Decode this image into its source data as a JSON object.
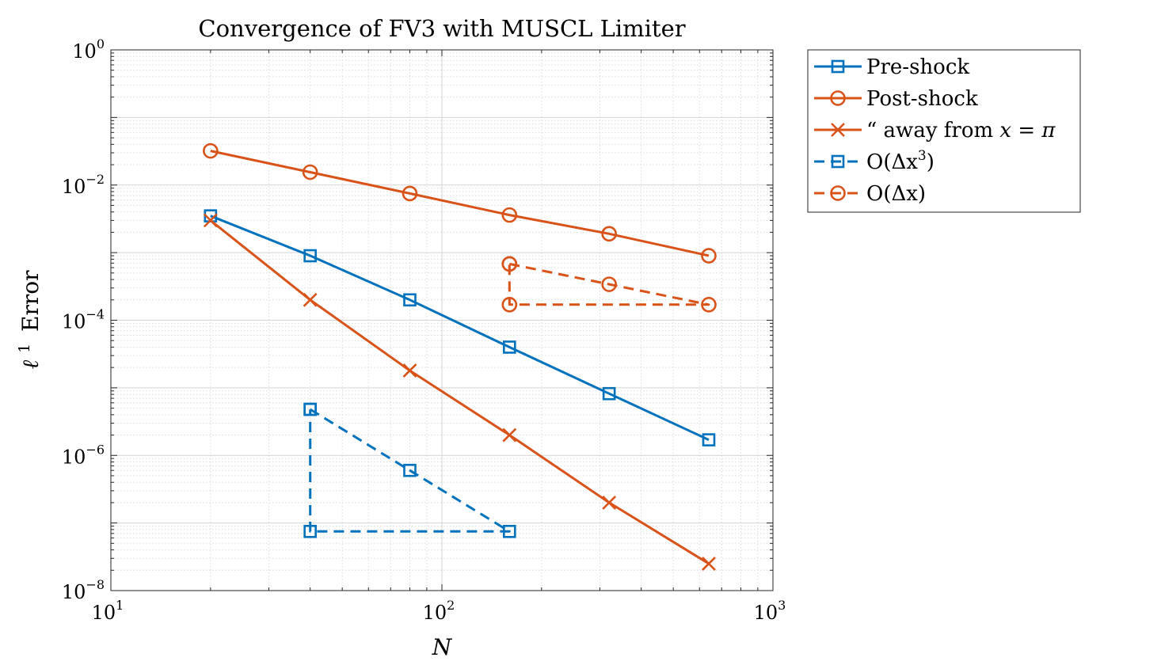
{
  "chart_data": {
    "type": "line",
    "title": "Convergence of FV3 with MUSCL Limiter",
    "xlabel": "N",
    "ylabel": "Error",
    "ylabel_prefix": "ℓ",
    "ylabel_sup": "1",
    "x_scale": "log",
    "y_scale": "log",
    "xlim": [
      10,
      1000
    ],
    "ylim": [
      1e-08,
      1
    ],
    "x_ticks": [
      {
        "base": "10",
        "exp": "1",
        "value": 10
      },
      {
        "base": "10",
        "exp": "2",
        "value": 100
      },
      {
        "base": "10",
        "exp": "3",
        "value": 1000
      }
    ],
    "y_ticks": [
      {
        "base": "10",
        "exp": "0",
        "value": 1
      },
      {
        "base": "10",
        "exp": "−2",
        "value": 0.01
      },
      {
        "base": "10",
        "exp": "−4",
        "value": 0.0001
      },
      {
        "base": "10",
        "exp": "−6",
        "value": 1e-06
      },
      {
        "base": "10",
        "exp": "−8",
        "value": 1e-08
      }
    ],
    "grid": true,
    "minor_grid": true,
    "legend_position": "outside-top-right",
    "series": [
      {
        "name": "Pre-shock",
        "color": "#0072BD",
        "dash": "solid",
        "marker": "square",
        "x": [
          20,
          40,
          80,
          160,
          320,
          640
        ],
        "y": [
          0.0035,
          0.0009,
          0.0002,
          4e-05,
          8.2e-06,
          1.7e-06
        ]
      },
      {
        "name": "Post-shock",
        "color": "#D95319",
        "dash": "solid",
        "marker": "circle",
        "x": [
          20,
          40,
          80,
          160,
          320,
          640
        ],
        "y": [
          0.032,
          0.0155,
          0.0075,
          0.0036,
          0.0019,
          0.0009
        ]
      },
      {
        "name": "“ away from x = π",
        "color": "#D95319",
        "dash": "solid",
        "marker": "x",
        "x": [
          20,
          40,
          80,
          160,
          320,
          640
        ],
        "y": [
          0.003,
          0.0002,
          1.8e-05,
          2e-06,
          2e-07,
          2.5e-08
        ]
      },
      {
        "name": "O(Δx³)",
        "color": "#0072BD",
        "dash": "dashed",
        "marker": "square",
        "x": [
          40,
          80,
          160,
          40,
          40
        ],
        "y": [
          4.8e-06,
          6e-07,
          7.5e-08,
          7.5e-08,
          4.8e-06
        ]
      },
      {
        "name": "O(Δx)",
        "color": "#D95319",
        "dash": "dashed",
        "marker": "circle",
        "x": [
          160,
          320,
          640,
          160,
          160
        ],
        "y": [
          0.00068,
          0.00034,
          0.00017,
          0.00017,
          0.00068
        ]
      }
    ],
    "legend": [
      {
        "label": "Pre-shock"
      },
      {
        "label": "Post-shock"
      },
      {
        "label": "“ away from ",
        "math": "x = π"
      },
      {
        "label": "O(Δx",
        "sup": "3",
        "suffix": ")"
      },
      {
        "label": "O(Δx)"
      }
    ]
  }
}
